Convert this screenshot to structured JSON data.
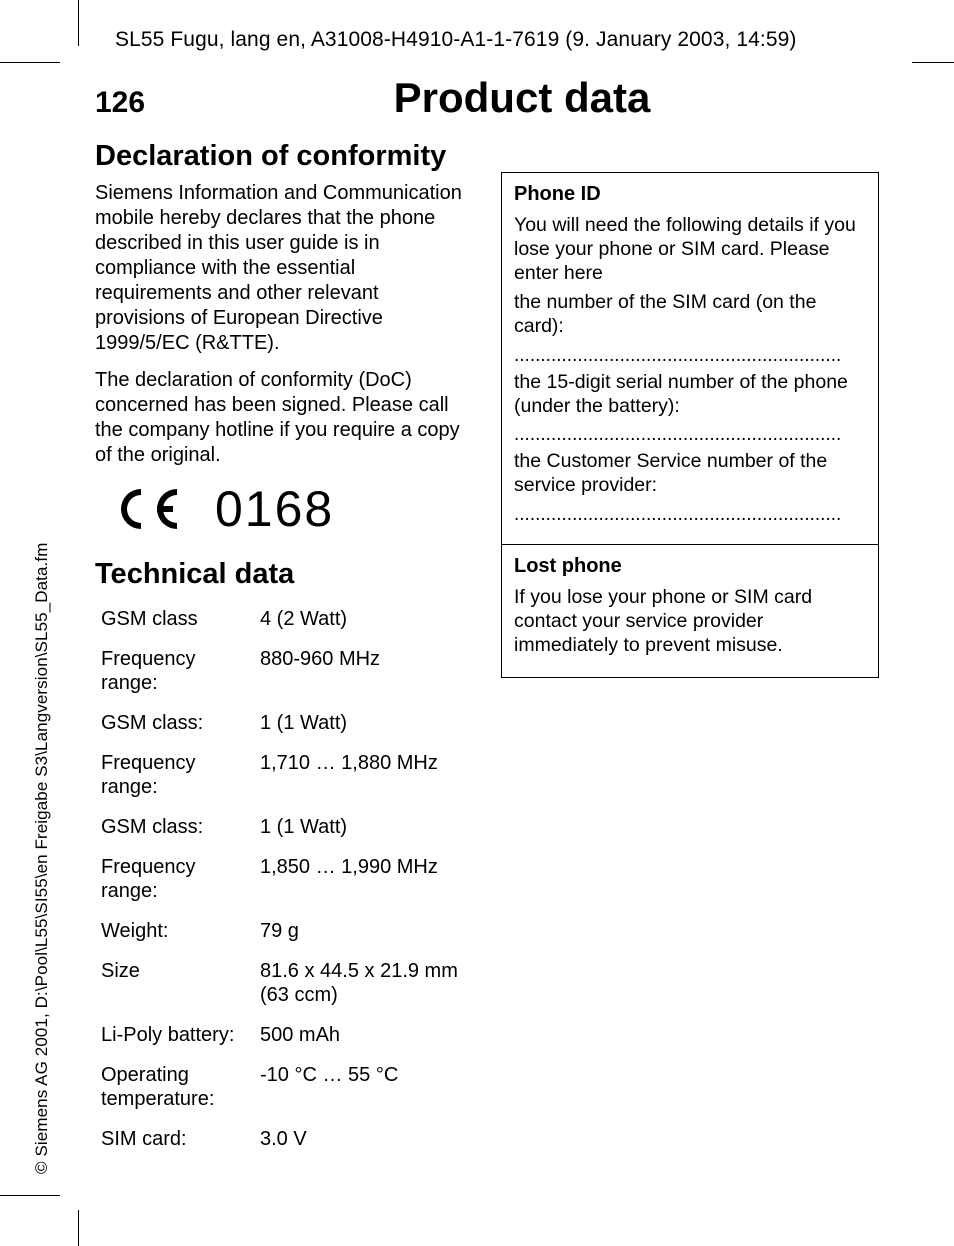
{
  "header": "SL55 Fugu, lang en, A31008-H4910-A1-1-7619 (9. January 2003, 14:59)",
  "sidetext": "© Siemens AG 2001, D:\\Pool\\L55\\SI55\\en Freigabe S3\\Langversion\\SL55_Data.fm",
  "page_number": "126",
  "page_title": "Product data",
  "left": {
    "section1_title": "Declaration of conformity",
    "p1": "Siemens Information and Communication mobile hereby declares that the phone described in this user guide is in compliance with the essential requirements and other relevant provisions of European Directive 1999/5/EC (R&TTE).",
    "p2": "The declaration of conformity (DoC) concerned has been signed. Please call the company hotline if you require a copy of the original.",
    "ce_number": "0168",
    "section2_title": "Technical data",
    "tech_rows": [
      [
        "GSM class",
        "4 (2 Watt)"
      ],
      [
        "Frequency range:",
        "880-960 MHz"
      ],
      [
        "GSM class:",
        "1 (1 Watt)"
      ],
      [
        "Frequency range:",
        "1,710 … 1,880 MHz"
      ],
      [
        "GSM class:",
        "1 (1 Watt)"
      ],
      [
        "Frequency range:",
        "1,850 … 1,990 MHz"
      ],
      [
        "Weight:",
        "79 g"
      ],
      [
        "Size",
        "81.6 x 44.5 x 21.9 mm (63 ccm)"
      ],
      [
        "Li-Poly battery:",
        "500 mAh"
      ],
      [
        "Operating temperature:",
        "-10 °C … 55 °C"
      ],
      [
        "SIM card:",
        "3.0 V"
      ]
    ]
  },
  "right": {
    "box1_title": "Phone ID",
    "box1_p1": "You will need the following details if you lose your phone or SIM card. Please enter here",
    "box1_p2": "the number of the SIM card (on the card):",
    "box1_p3": "the 15-digit serial number of the phone (under the battery):",
    "box1_p4": "the Customer Service number of the service provider:",
    "dots": "..............................................................",
    "box2_title": "Lost phone",
    "box2_p1": "If you lose your phone or SIM card contact your service provider immediately to prevent misuse."
  },
  "colors": {
    "text": "#000000",
    "bg": "#ffffff",
    "border": "#000000"
  }
}
